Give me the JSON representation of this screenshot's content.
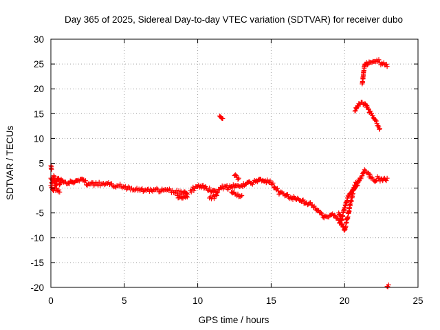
{
  "chart_data": {
    "type": "scatter",
    "title": "Day 365 of 2025, Sidereal Day-to-day VTEC variation (SDTVAR) for receiver dubo",
    "xlabel": "GPS time / hours",
    "ylabel": "SDTVAR / TECUs",
    "xlim": [
      0,
      25
    ],
    "ylim": [
      -20,
      30
    ],
    "x_ticks": [
      0,
      5,
      10,
      15,
      20,
      25
    ],
    "y_ticks": [
      -20,
      -15,
      -10,
      -5,
      0,
      5,
      10,
      15,
      20,
      25,
      30
    ],
    "grid": true,
    "marker": "plus",
    "series_color": "#ff0000",
    "series": [
      {
        "name": "SDTVAR",
        "segments": [
          {
            "x": [
              0.0,
              0.1,
              0.2,
              0.3,
              0.4,
              0.5,
              0.6,
              0.7,
              0.8,
              1.0,
              1.2,
              1.5,
              1.8,
              2.0,
              2.3,
              2.6,
              3.0,
              3.5,
              4.0,
              4.5,
              5.0,
              5.5,
              6.0,
              6.5,
              7.0,
              7.5,
              8.0,
              8.5,
              9.0,
              9.3
            ],
            "y": [
              2.0,
              1.0,
              2.5,
              0.5,
              1.5,
              2.0,
              0.8,
              1.8,
              1.5,
              1.2,
              1.0,
              1.2,
              1.5,
              1.8,
              1.2,
              0.8,
              0.8,
              0.8,
              0.7,
              0.5,
              0.2,
              0.0,
              -0.2,
              -0.5,
              -0.3,
              -0.6,
              -0.5,
              -0.8,
              -1.0,
              -1.2
            ]
          },
          {
            "x": [
              0.0,
              0.2,
              0.4,
              0.6
            ],
            "y": [
              0.5,
              -0.5,
              0.0,
              -0.8
            ]
          },
          {
            "x": [
              8.6,
              9.0,
              9.3
            ],
            "y": [
              -1.5,
              -2.0,
              -1.8
            ]
          },
          {
            "x": [
              9.5,
              9.8,
              10.0,
              10.3,
              10.6,
              11.0,
              11.3,
              11.6,
              12.0
            ],
            "y": [
              -0.5,
              0.0,
              0.3,
              0.5,
              0.0,
              -0.5,
              -1.0,
              0.0,
              0.5
            ]
          },
          {
            "x": [
              10.8,
              11.0,
              11.3
            ],
            "y": [
              -2.0,
              -1.8,
              -1.5
            ]
          },
          {
            "x": [
              12.0,
              12.3,
              12.6,
              13.0,
              13.3,
              13.6,
              14.0,
              14.3,
              14.6,
              15.0,
              15.3,
              15.6,
              16.0,
              16.3,
              16.6,
              17.0,
              17.3,
              17.6,
              18.0,
              18.3,
              18.6,
              19.0,
              19.3,
              19.6,
              19.8,
              20.0,
              20.2,
              20.4,
              20.6,
              20.8,
              21.0,
              21.2,
              21.4,
              21.6,
              21.8,
              22.0,
              22.3,
              22.6,
              22.9
            ],
            "y": [
              0.0,
              0.3,
              0.5,
              0.5,
              0.8,
              1.0,
              1.5,
              1.8,
              1.5,
              1.0,
              0.0,
              -1.0,
              -1.5,
              -1.8,
              -2.0,
              -2.5,
              -3.0,
              -3.0,
              -4.0,
              -5.0,
              -6.0,
              -5.5,
              -5.5,
              -6.5,
              -7.5,
              -8.5,
              -6.0,
              -3.0,
              -0.5,
              0.5,
              1.5,
              2.5,
              3.5,
              3.0,
              2.0,
              1.5,
              2.0,
              1.5,
              2.0
            ]
          },
          {
            "x": [
              12.3,
              12.6,
              13.0
            ],
            "y": [
              -0.8,
              -1.2,
              -1.5
            ]
          },
          {
            "x": [
              12.5,
              12.8
            ],
            "y": [
              2.5,
              2.0
            ]
          },
          {
            "x": [
              19.6,
              19.8,
              20.0,
              20.2,
              20.4,
              20.6,
              20.8,
              21.0
            ],
            "y": [
              -5.0,
              -6.5,
              -4.0,
              -2.0,
              -1.0,
              0.0,
              1.0,
              1.5
            ]
          },
          {
            "x": [
              20.7,
              20.8,
              20.9,
              21.0,
              21.2,
              21.4,
              21.6,
              21.8,
              22.0,
              22.2,
              22.4
            ],
            "y": [
              15.5,
              16.0,
              16.5,
              17.0,
              17.3,
              17.0,
              16.0,
              15.0,
              14.0,
              13.0,
              12.0
            ]
          },
          {
            "x": [
              21.2,
              21.25,
              21.3,
              21.35,
              21.4,
              21.5,
              21.6,
              21.8,
              22.0,
              22.2,
              22.4,
              22.6,
              22.8,
              22.9
            ],
            "y": [
              21.0,
              22.0,
              23.5,
              24.5,
              25.0,
              25.3,
              25.0,
              25.3,
              25.5,
              25.8,
              25.3,
              25.0,
              24.8,
              24.5
            ]
          },
          {
            "x": [
              11.5,
              11.6,
              11.7
            ],
            "y": [
              14.5,
              14.2,
              14.0
            ]
          },
          {
            "x": [
              0.0,
              0.05
            ],
            "y": [
              4.5,
              3.8
            ]
          },
          {
            "x": [
              22.9,
              23.0
            ],
            "y": [
              -19.8,
              -19.5
            ]
          }
        ]
      }
    ]
  }
}
